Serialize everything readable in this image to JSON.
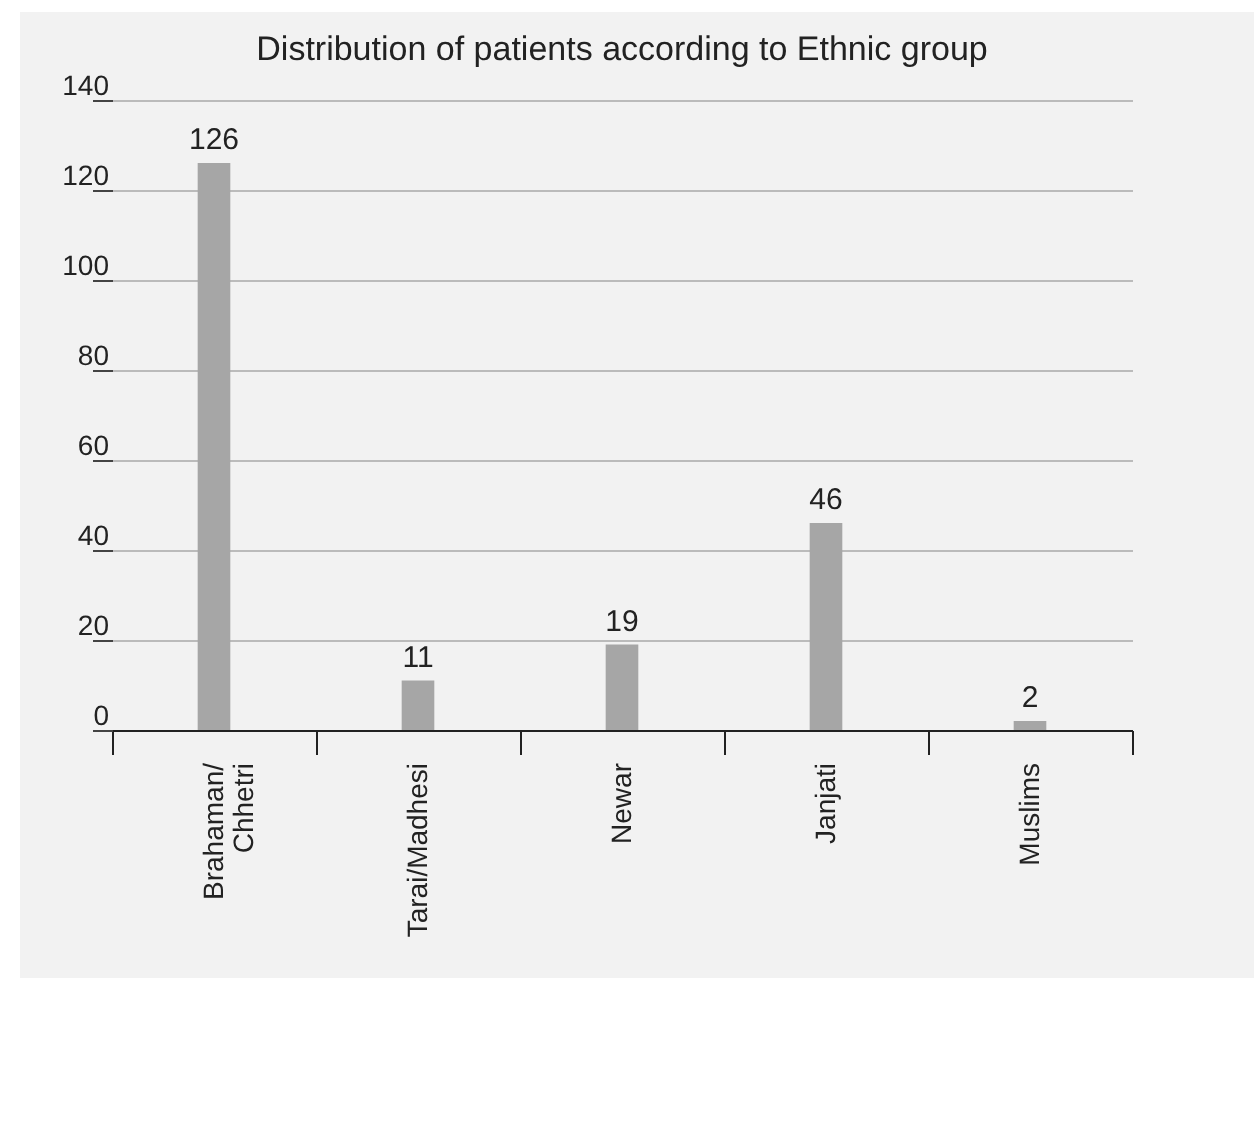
{
  "chart_data": {
    "type": "bar",
    "title": "Distribution of patients according to Ethnic group",
    "categories": [
      "Brahaman/ Chhetri",
      "Tarai/Madhesi",
      "Newar",
      "Janjati",
      "Muslims"
    ],
    "values": [
      126,
      11,
      19,
      46,
      2
    ],
    "color": "#a6a6a6",
    "ylim": [
      0,
      140
    ],
    "yticks": [
      0,
      20,
      40,
      60,
      80,
      100,
      120,
      140
    ],
    "grid": "y",
    "data_labels": true
  }
}
